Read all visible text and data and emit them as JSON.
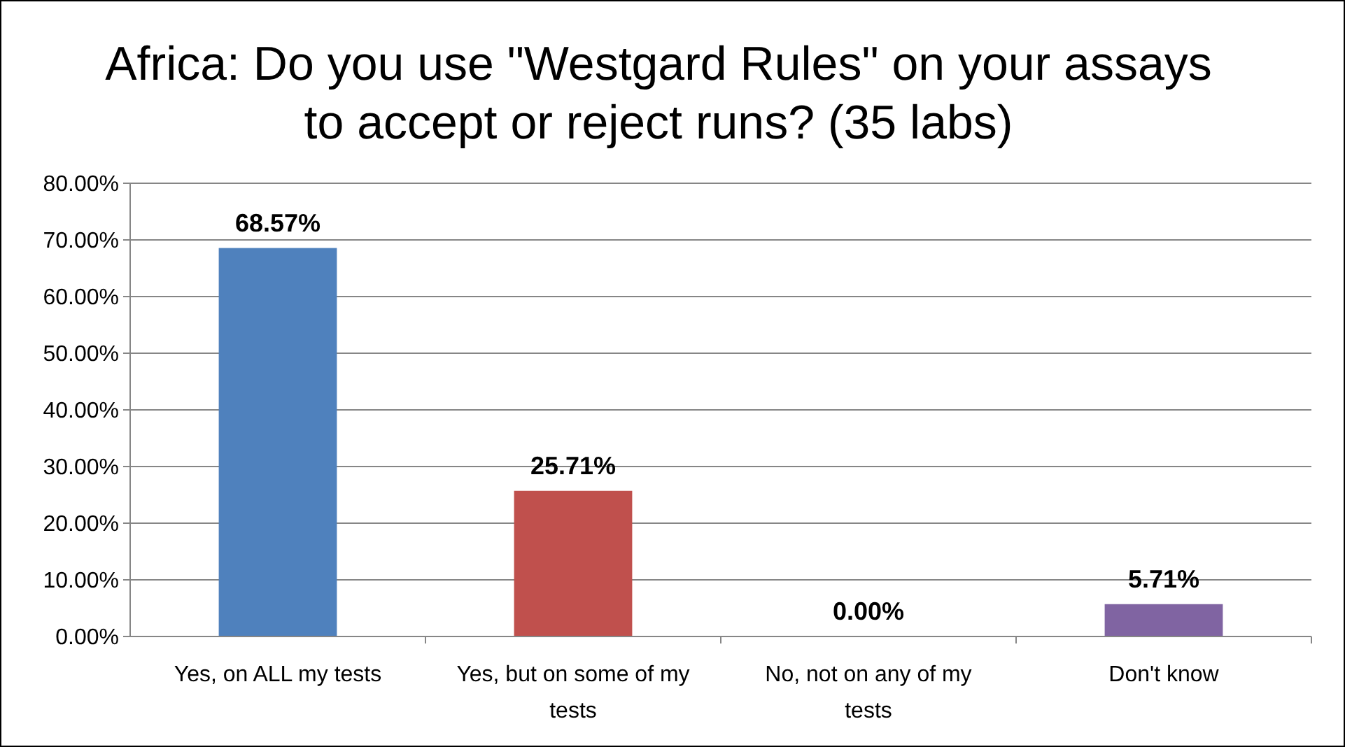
{
  "chart_data": {
    "type": "bar",
    "title": "Africa: Do you use \"Westgard Rules\" on your assays to accept or reject runs? (35 labs)",
    "categories": [
      "Yes, on ALL my tests",
      "Yes, but on  some of my tests",
      "No, not on any of my tests",
      "Don't know"
    ],
    "values": [
      68.57,
      25.71,
      0,
      5.71
    ],
    "colors": [
      "#4f81bd",
      "#c0504d",
      "#9bbb59",
      "#8064a2"
    ],
    "value_labels": [
      "68.57%",
      "25.71%",
      "0.00%",
      "5.71%"
    ],
    "ylim": [
      0,
      80
    ],
    "yticks": [
      {
        "value": 0,
        "label": "0.00%"
      },
      {
        "value": 10,
        "label": "10.00%"
      },
      {
        "value": 20,
        "label": "20.00%"
      },
      {
        "value": 30,
        "label": "30.00%"
      },
      {
        "value": 40,
        "label": "40.00%"
      },
      {
        "value": 50,
        "label": "50.00%"
      },
      {
        "value": 60,
        "label": "60.00%"
      },
      {
        "value": 70,
        "label": "70.00%"
      },
      {
        "value": 80,
        "label": "80.00%"
      }
    ],
    "grid": "y",
    "legend": false
  }
}
